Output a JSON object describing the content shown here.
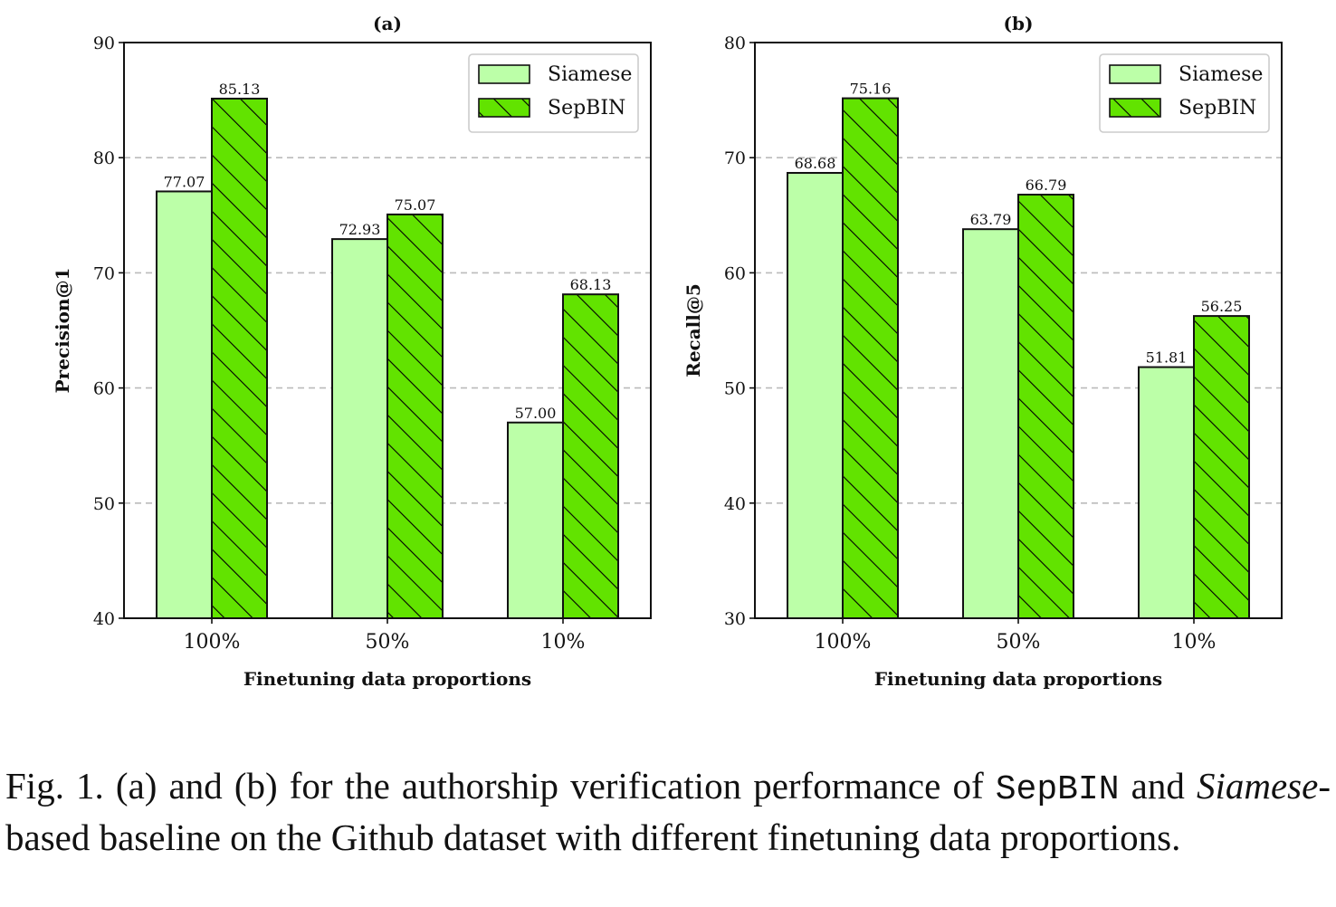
{
  "colors": {
    "siamese": "#bcffa8",
    "sepbin": "#62e300",
    "grid": "#bbbbbb"
  },
  "chart_data": [
    {
      "type": "bar",
      "title": "(a)",
      "xlabel": "Finetuning data proportions",
      "ylabel": "Precision@1",
      "ylim": [
        40,
        90
      ],
      "yticks": [
        40,
        50,
        60,
        70,
        80,
        90
      ],
      "categories": [
        "100%",
        "50%",
        "10%"
      ],
      "series": [
        {
          "name": "Siamese",
          "values": [
            77.07,
            72.93,
            57.0
          ],
          "labels": [
            "77.07",
            "72.93",
            "57.00"
          ],
          "hatch": false
        },
        {
          "name": "SepBIN",
          "values": [
            85.13,
            75.07,
            68.13
          ],
          "labels": [
            "85.13",
            "75.07",
            "68.13"
          ],
          "hatch": true
        }
      ],
      "grid": "y-dashed",
      "legend": "top-right"
    },
    {
      "type": "bar",
      "title": "(b)",
      "xlabel": "Finetuning data proportions",
      "ylabel": "Recall@5",
      "ylim": [
        30,
        80
      ],
      "yticks": [
        30,
        40,
        50,
        60,
        70,
        80
      ],
      "categories": [
        "100%",
        "50%",
        "10%"
      ],
      "series": [
        {
          "name": "Siamese",
          "values": [
            68.68,
            63.79,
            51.81
          ],
          "labels": [
            "68.68",
            "63.79",
            "51.81"
          ],
          "hatch": false
        },
        {
          "name": "SepBIN",
          "values": [
            75.16,
            66.79,
            56.25
          ],
          "labels": [
            "75.16",
            "66.79",
            "56.25"
          ],
          "hatch": true
        }
      ],
      "grid": "y-dashed",
      "legend": "top-right"
    }
  ],
  "caption": {
    "part1": "Fig. 1.  (a) and (b) for the authorship verification performance of ",
    "code": "SepBIN",
    "part2": " and ",
    "italic": "Siamese",
    "part3": "-based baseline on the Github dataset with different finetuning data proportions."
  }
}
